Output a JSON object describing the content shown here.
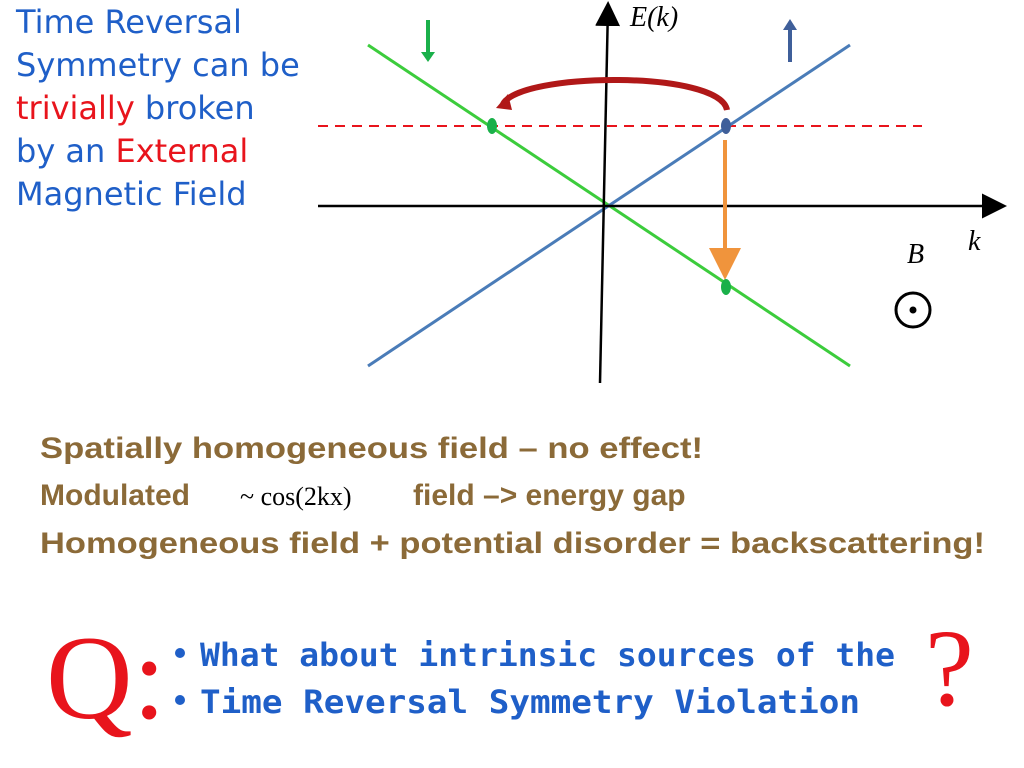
{
  "heading": {
    "lines": [
      [
        "Time Reversal"
      ],
      [
        "Symmetry can be"
      ],
      [
        "trivially",
        "broken"
      ],
      [
        "by an",
        "External"
      ],
      [
        "Magnetic Field"
      ]
    ]
  },
  "diagram": {
    "y_axis_label": "E(k)",
    "x_axis_label": "k",
    "field_label": "B"
  },
  "statements": [
    "Spatially homogeneous field – no effect!",
    {
      "before": "Modulated",
      "formula": "~ cos(2kx)",
      "after": "field –> energy gap"
    },
    "Homogeneous field + potential disorder = backscattering!"
  ],
  "question": {
    "label": "Q:",
    "items": [
      "What about intrinsic sources of the",
      "Time Reversal Symmetry Violation"
    ],
    "mark": "?"
  }
}
